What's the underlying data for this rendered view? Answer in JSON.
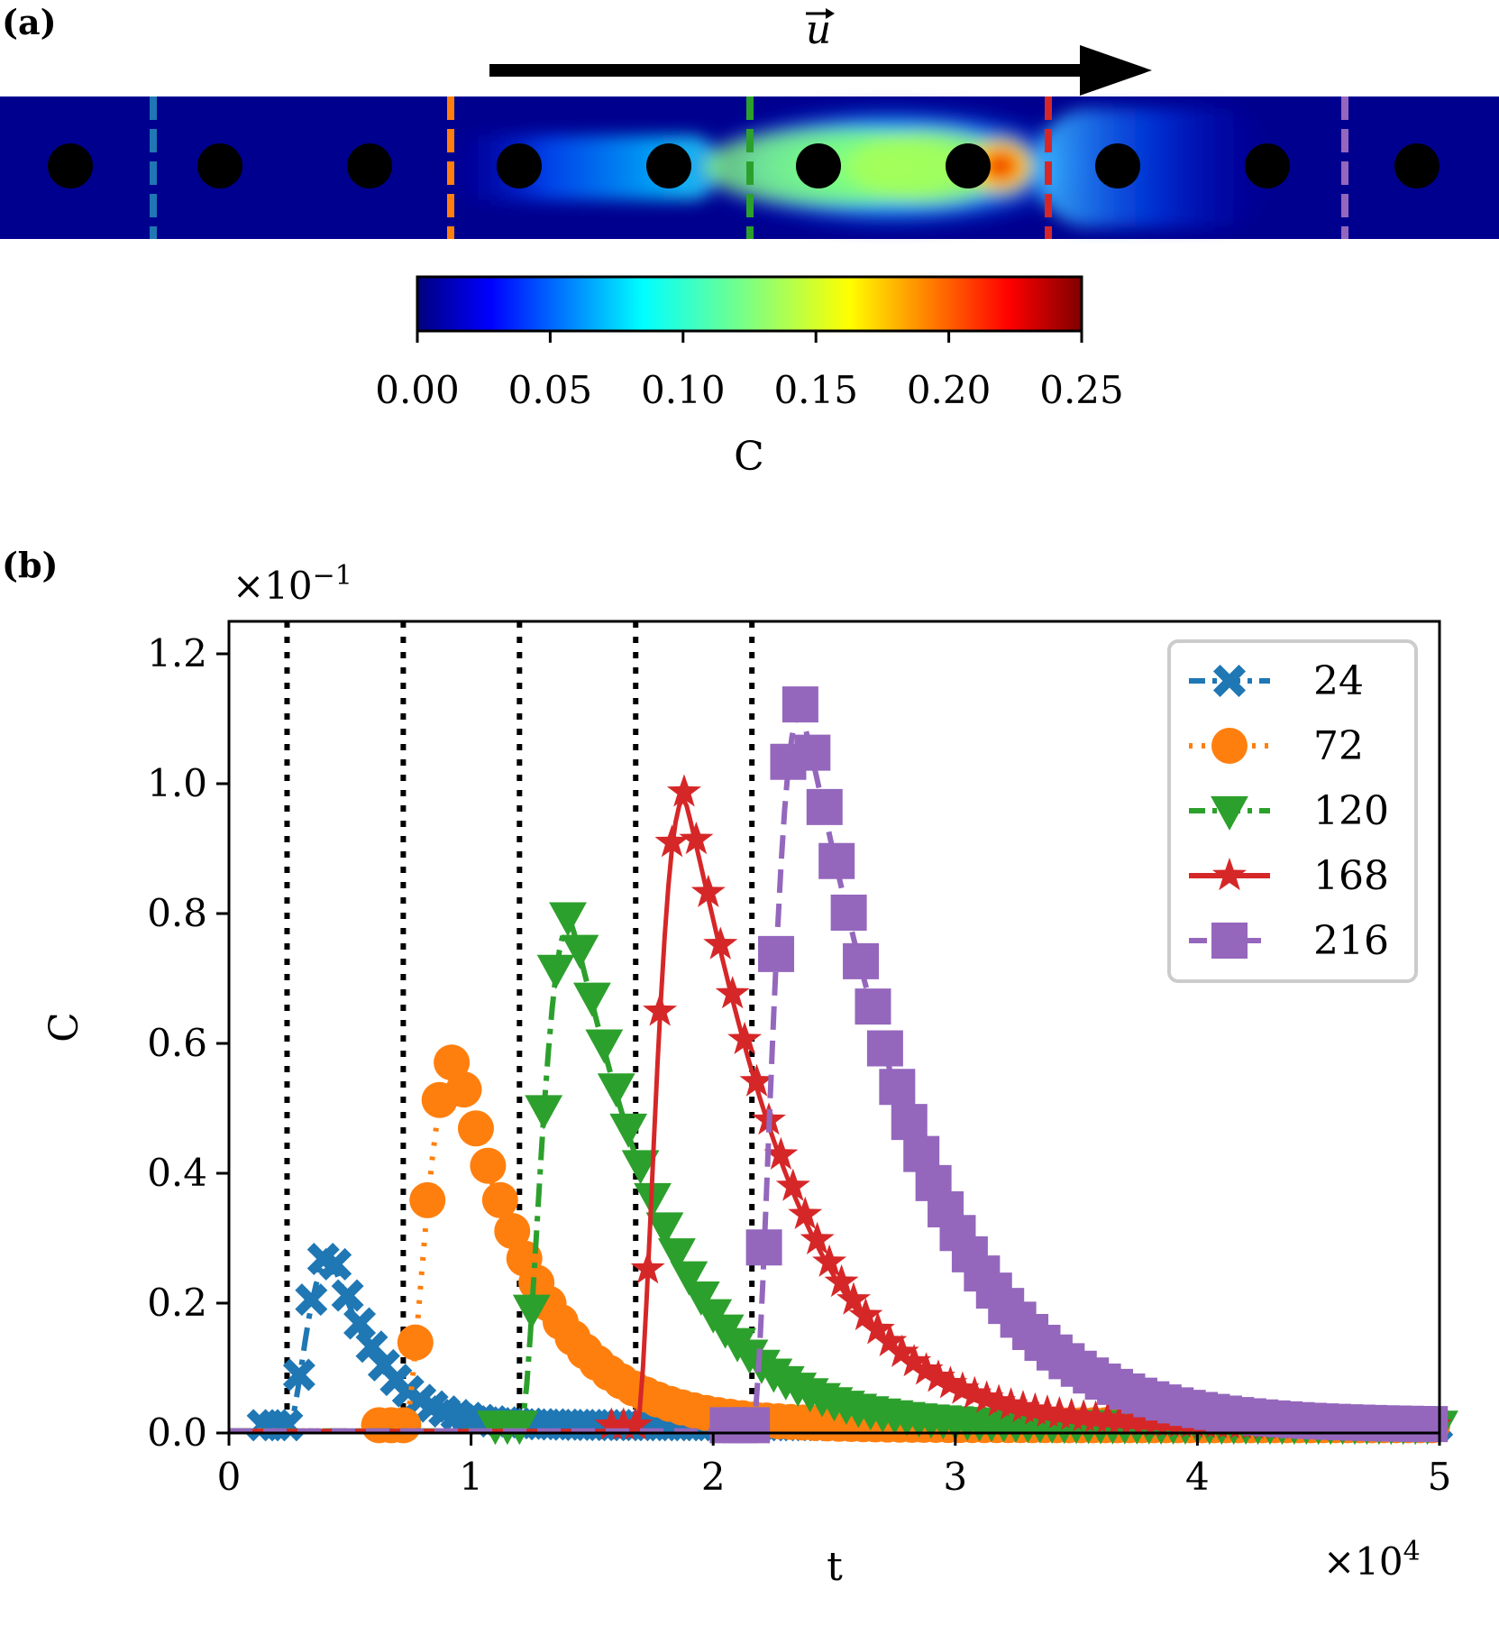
{
  "panel_a": {
    "label": "(a)",
    "arrow_label": "u",
    "colorbar": {
      "ticks": [
        "0.00",
        "0.05",
        "0.10",
        "0.15",
        "0.20",
        "0.25"
      ],
      "label": "C"
    }
  },
  "panel_b": {
    "label": "(b)",
    "y_multiplier": "×10",
    "y_multiplier_exp": "−1",
    "x_multiplier": "×10",
    "x_multiplier_exp": "4"
  },
  "chart_data": {
    "type": "line",
    "title": "",
    "xlabel": "t",
    "ylabel": "C",
    "xlim": [
      0,
      50000
    ],
    "ylim": [
      0,
      0.125
    ],
    "x_ticks": [
      0,
      10000,
      20000,
      30000,
      40000,
      50000
    ],
    "x_tick_labels": [
      "0",
      "1",
      "2",
      "3",
      "4",
      "5"
    ],
    "y_ticks": [
      0,
      0.02,
      0.04,
      0.06,
      0.08,
      0.1,
      0.12
    ],
    "y_tick_labels": [
      "0.0",
      "0.2",
      "0.4",
      "0.6",
      "0.8",
      "1.0",
      "1.2"
    ],
    "vlines": [
      2400,
      7200,
      12000,
      16800,
      21600
    ],
    "legend_position": "upper-right",
    "series": [
      {
        "name": "24",
        "color": "#1f77b4",
        "marker": "X",
        "line": "dashdot",
        "t_arrival": 2400,
        "peak": 0.0265,
        "t_peak": 4200,
        "decay": 2100
      },
      {
        "name": "72",
        "color": "#ff7f0e",
        "marker": "o",
        "line": "dotted",
        "t_arrival": 7200,
        "peak": 0.056,
        "t_peak": 9300,
        "decay": 3600
      },
      {
        "name": "120",
        "color": "#2ca02c",
        "marker": "v",
        "line": "dashdot",
        "t_arrival": 12000,
        "peak": 0.0785,
        "t_peak": 14100,
        "decay": 4100
      },
      {
        "name": "168",
        "color": "#d62728",
        "marker": "*",
        "line": "solid",
        "t_arrival": 16800,
        "peak": 0.0975,
        "t_peak": 18800,
        "decay": 4600
      },
      {
        "name": "216",
        "color": "#9467bd",
        "marker": "s",
        "line": "dashed",
        "t_arrival": 21600,
        "peak": 0.111,
        "t_peak": 23600,
        "decay": 5100
      }
    ]
  },
  "colors": {
    "arrow": "#000000",
    "channel_bg": "#00008f",
    "section_lines": [
      "#1f77b4",
      "#ff7f0e",
      "#2ca02c",
      "#d62728",
      "#9467bd"
    ]
  }
}
